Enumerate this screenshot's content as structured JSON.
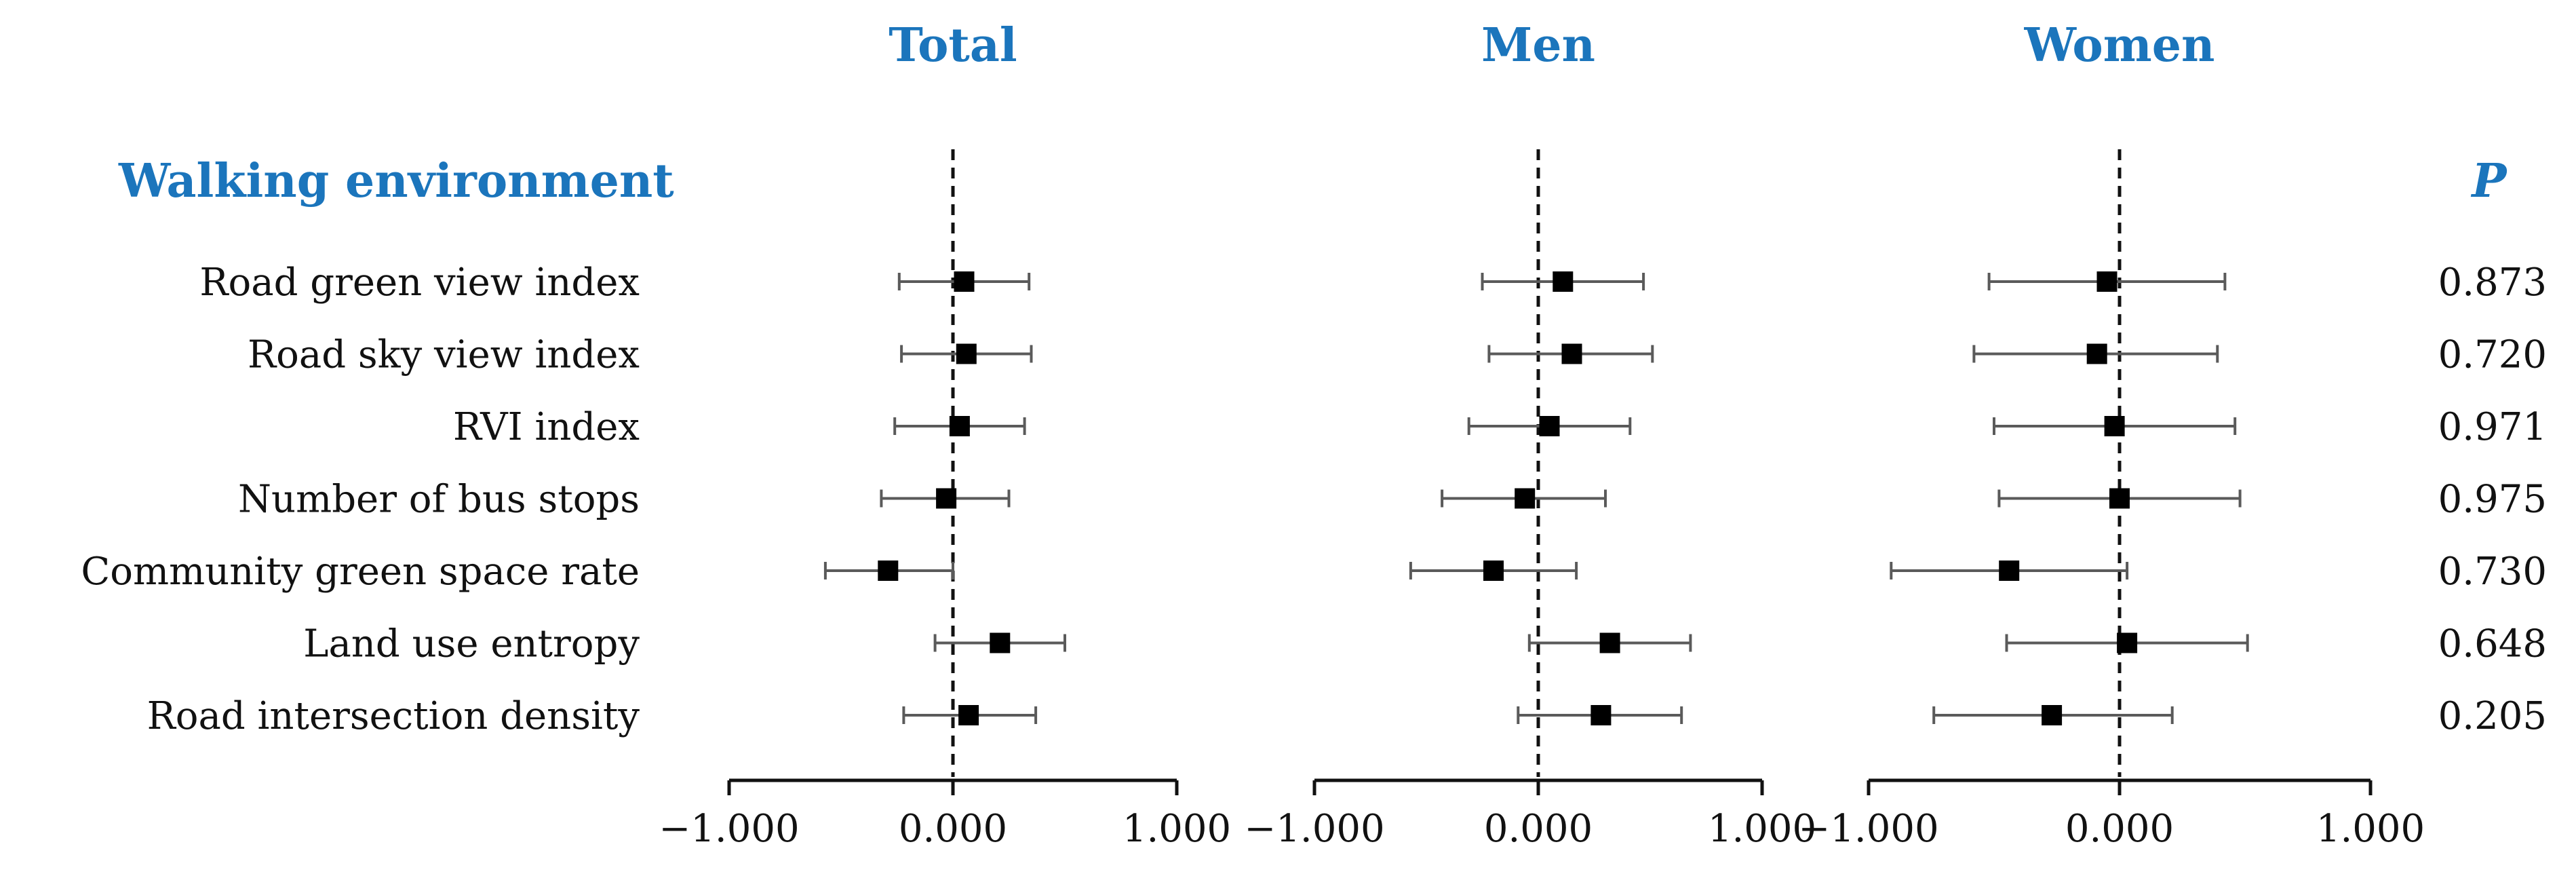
{
  "chart_data": {
    "type": "forest",
    "section_title": "Walking environment",
    "p_header": "P",
    "rows": [
      "Road green view index",
      "Road sky view index",
      "RVI index",
      "Number of bus stops",
      "Community green space rate",
      "Land use entropy",
      "Road intersection density"
    ],
    "p_values": [
      "0.873",
      "0.720",
      "0.971",
      "0.975",
      "0.730",
      "0.648",
      "0.205"
    ],
    "xlim": [
      -1.0,
      1.0
    ],
    "ticks": [
      -1.0,
      0.0,
      1.0
    ],
    "tick_labels": [
      "−1.000",
      "0.000",
      "1.000"
    ],
    "reference_line": 0.0,
    "panels": [
      {
        "title": "Total",
        "estimates": [
          0.05,
          0.06,
          0.03,
          -0.03,
          -0.29,
          0.21,
          0.07
        ],
        "ci_low": [
          -0.24,
          -0.23,
          -0.26,
          -0.32,
          -0.57,
          -0.08,
          -0.22
        ],
        "ci_high": [
          0.34,
          0.35,
          0.32,
          0.25,
          0.0,
          0.5,
          0.37
        ]
      },
      {
        "title": "Men",
        "estimates": [
          0.11,
          0.15,
          0.05,
          -0.06,
          -0.2,
          0.32,
          0.28
        ],
        "ci_low": [
          -0.25,
          -0.22,
          -0.31,
          -0.43,
          -0.57,
          -0.04,
          -0.09
        ],
        "ci_high": [
          0.47,
          0.51,
          0.41,
          0.3,
          0.17,
          0.68,
          0.64
        ]
      },
      {
        "title": "Women",
        "estimates": [
          -0.05,
          -0.09,
          -0.02,
          0.0,
          -0.44,
          0.03,
          -0.27
        ],
        "ci_low": [
          -0.52,
          -0.58,
          -0.5,
          -0.48,
          -0.91,
          -0.45,
          -0.74
        ],
        "ci_high": [
          0.42,
          0.39,
          0.46,
          0.48,
          0.03,
          0.51,
          0.21
        ]
      }
    ]
  }
}
